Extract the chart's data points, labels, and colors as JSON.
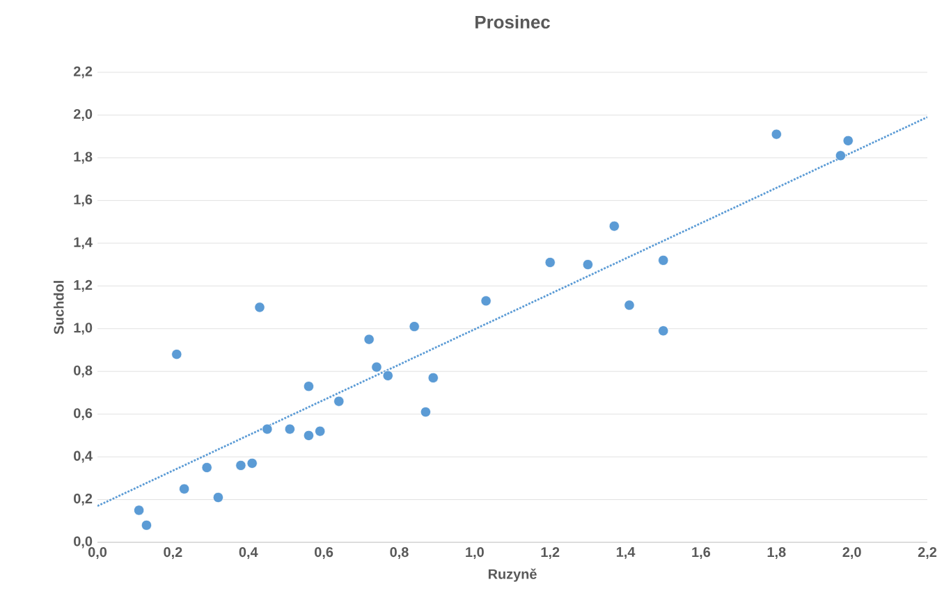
{
  "chart_data": {
    "type": "scatter",
    "title": "Prosinec",
    "xlabel": "Ruzyně",
    "ylabel": "Suchdol",
    "xlim": [
      0,
      2.2
    ],
    "ylim": [
      0,
      2.2
    ],
    "xticks": [
      {
        "value": 0,
        "label": "0,0"
      },
      {
        "value": 0.2,
        "label": "0,2"
      },
      {
        "value": 0.4,
        "label": "0,4"
      },
      {
        "value": 0.6,
        "label": "0,6"
      },
      {
        "value": 0.8,
        "label": "0,8"
      },
      {
        "value": 1.0,
        "label": "1,0"
      },
      {
        "value": 1.2,
        "label": "1,2"
      },
      {
        "value": 1.4,
        "label": "1,4"
      },
      {
        "value": 1.6,
        "label": "1,6"
      },
      {
        "value": 1.8,
        "label": "1,8"
      },
      {
        "value": 2.0,
        "label": "2,0"
      },
      {
        "value": 2.2,
        "label": "2,2"
      }
    ],
    "yticks": [
      {
        "value": 0,
        "label": "0,0"
      },
      {
        "value": 0.2,
        "label": "0,2"
      },
      {
        "value": 0.4,
        "label": "0,4"
      },
      {
        "value": 0.6,
        "label": "0,6"
      },
      {
        "value": 0.8,
        "label": "0,8"
      },
      {
        "value": 1.0,
        "label": "1,0"
      },
      {
        "value": 1.2,
        "label": "1,2"
      },
      {
        "value": 1.4,
        "label": "1,4"
      },
      {
        "value": 1.6,
        "label": "1,6"
      },
      {
        "value": 1.8,
        "label": "1,8"
      },
      {
        "value": 2.0,
        "label": "2,0"
      },
      {
        "value": 2.2,
        "label": "2,2"
      }
    ],
    "grid": "y",
    "series": [
      {
        "color": "#5b9bd5",
        "marker": "circle",
        "x": [
          0.11,
          0.13,
          0.21,
          0.23,
          0.29,
          0.32,
          0.38,
          0.41,
          0.43,
          0.45,
          0.51,
          0.56,
          0.56,
          0.59,
          0.64,
          0.72,
          0.74,
          0.77,
          0.84,
          0.87,
          0.89,
          1.03,
          1.2,
          1.3,
          1.37,
          1.41,
          1.5,
          1.5,
          1.8,
          1.97,
          1.99
        ],
        "values": [
          0.15,
          0.08,
          0.88,
          0.25,
          0.35,
          0.21,
          0.36,
          0.37,
          1.1,
          0.53,
          0.53,
          0.73,
          0.5,
          0.52,
          0.66,
          0.95,
          0.82,
          0.78,
          1.01,
          0.61,
          0.77,
          1.13,
          1.31,
          1.3,
          1.48,
          1.11,
          1.32,
          0.99,
          1.91,
          1.81,
          1.88
        ]
      },
      {
        "type": "line",
        "color": "#5b9bd5",
        "marker": "none",
        "line_style": "dotted",
        "x": [
          0,
          2.2
        ],
        "values": [
          0.17,
          1.99
        ]
      }
    ]
  }
}
